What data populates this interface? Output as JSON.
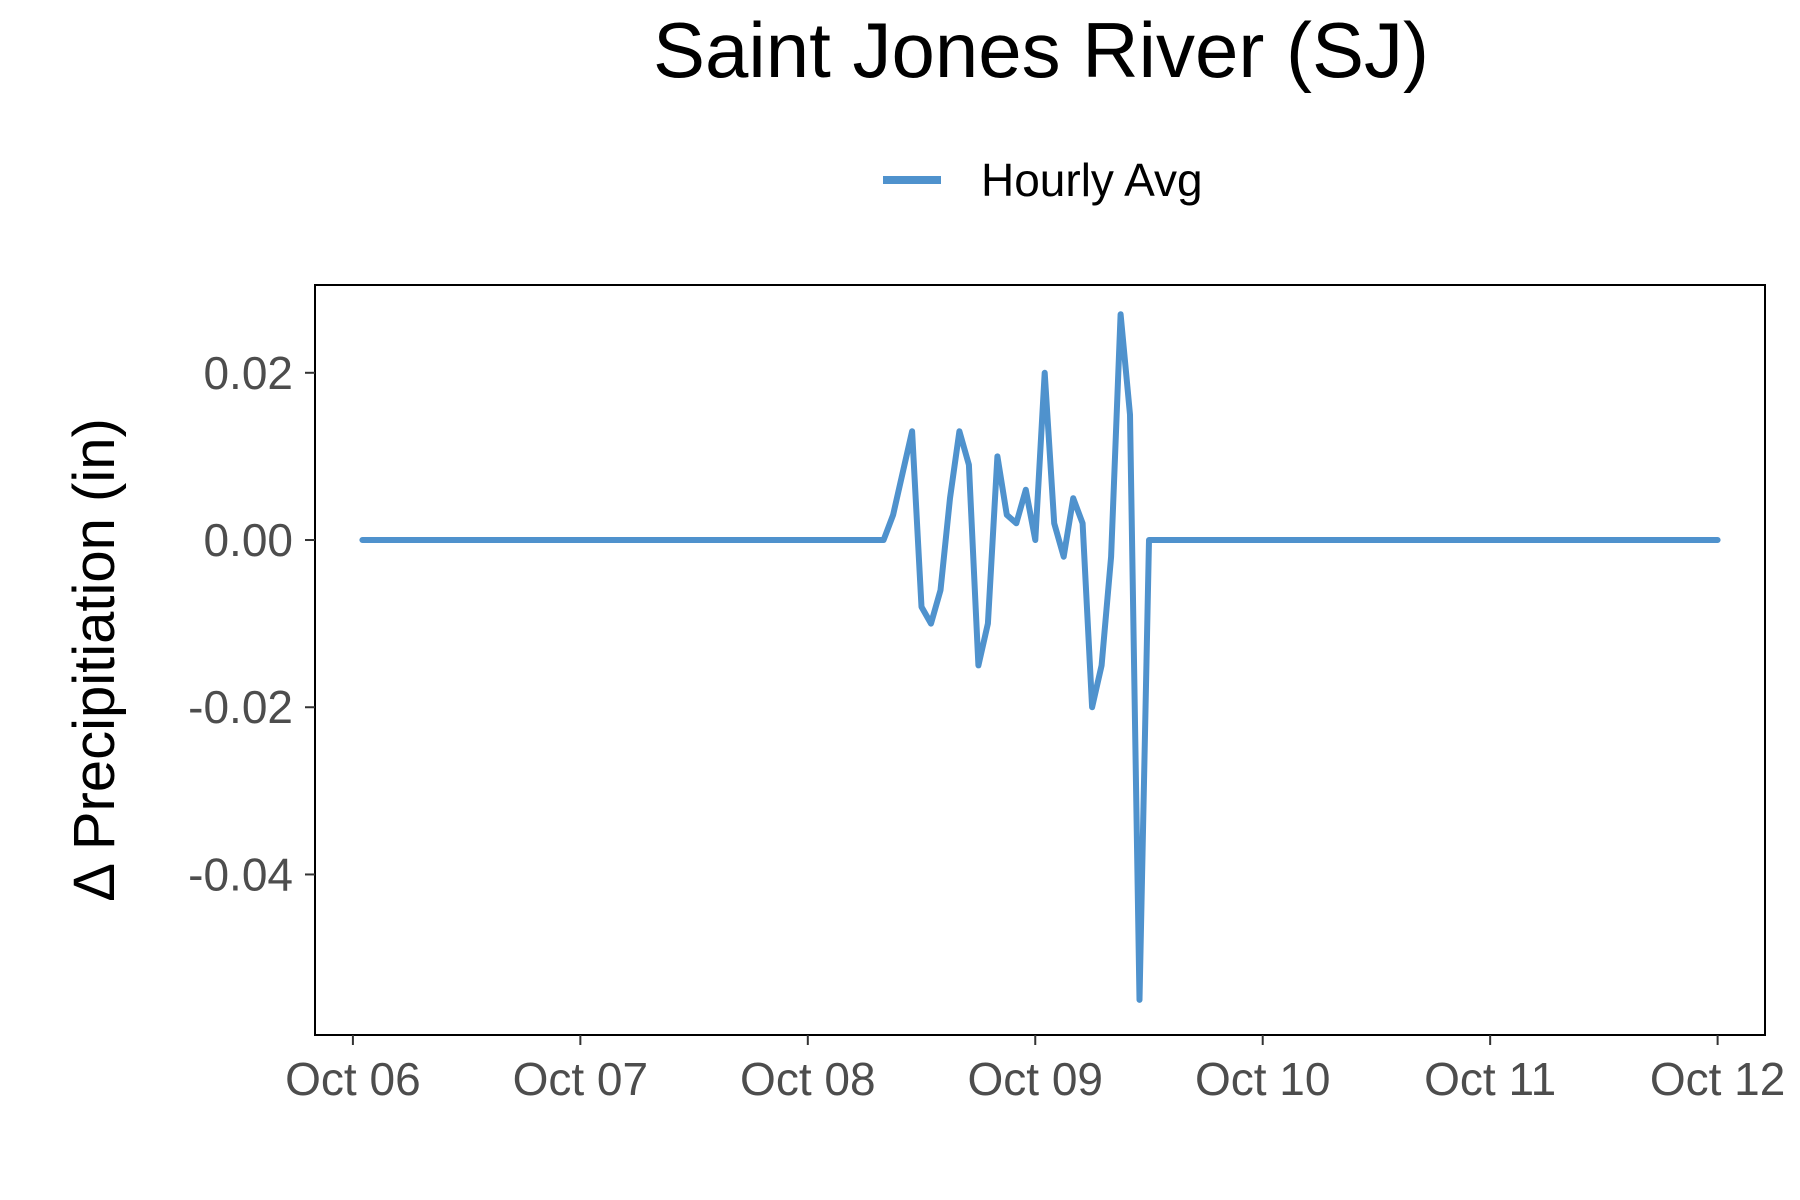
{
  "chart_data": {
    "type": "line",
    "title": "Saint Jones River (SJ)",
    "xlabel": "",
    "ylabel": "Δ Precipitiation (in)",
    "legend_position": "top",
    "grid": false,
    "x_tick_labels": [
      "Oct 06",
      "Oct 07",
      "Oct 08",
      "Oct 09",
      "Oct 10",
      "Oct 11",
      "Oct 12"
    ],
    "y_tick_labels": [
      "0.02",
      "0.00",
      "-0.02",
      "-0.04"
    ],
    "y_ticks": [
      0.02,
      0.0,
      -0.02,
      -0.04
    ],
    "ylim": [
      -0.0592,
      0.0305
    ],
    "xlim": [
      "2023-10-05T20:00",
      "2023-10-12T05:00"
    ],
    "series": [
      {
        "name": "Hourly Avg",
        "color": "#4f92cd",
        "x": [
          "2023-10-06T01:00",
          "2023-10-08T08:00",
          "2023-10-08T09:00",
          "2023-10-08T10:00",
          "2023-10-08T11:00",
          "2023-10-08T12:00",
          "2023-10-08T13:00",
          "2023-10-08T14:00",
          "2023-10-08T15:00",
          "2023-10-08T16:00",
          "2023-10-08T17:00",
          "2023-10-08T18:00",
          "2023-10-08T19:00",
          "2023-10-08T20:00",
          "2023-10-08T21:00",
          "2023-10-08T22:00",
          "2023-10-08T23:00",
          "2023-10-09T00:00",
          "2023-10-09T01:00",
          "2023-10-09T02:00",
          "2023-10-09T03:00",
          "2023-10-09T04:00",
          "2023-10-09T05:00",
          "2023-10-09T06:00",
          "2023-10-09T07:00",
          "2023-10-09T08:00",
          "2023-10-09T09:00",
          "2023-10-09T10:00",
          "2023-10-09T11:00",
          "2023-10-09T12:00",
          "2023-10-12T00:00"
        ],
        "values": [
          0.0,
          0.0,
          0.003,
          0.008,
          0.013,
          -0.008,
          -0.01,
          -0.006,
          0.005,
          0.013,
          0.009,
          -0.015,
          -0.01,
          0.01,
          0.003,
          0.002,
          0.006,
          0.0,
          0.02,
          0.002,
          -0.002,
          0.005,
          0.002,
          -0.02,
          -0.015,
          -0.002,
          0.027,
          0.015,
          -0.055,
          0.0,
          0.0
        ]
      }
    ]
  }
}
